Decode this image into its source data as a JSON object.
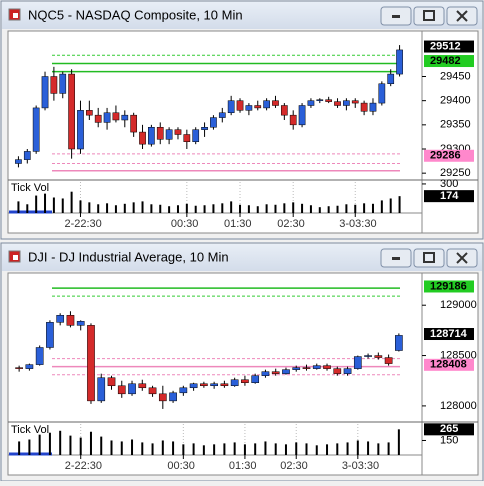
{
  "windows": [
    {
      "title": "NQC5 - NASDAQ Composite, 10 Min",
      "chart_data": {
        "type": "candlestick",
        "categories": [
          null,
          null,
          null,
          null,
          null,
          null,
          null,
          "2-22:30",
          null,
          null,
          null,
          null,
          null,
          null,
          null,
          null,
          null,
          null,
          null,
          "00:30",
          null,
          null,
          null,
          null,
          null,
          "01:30",
          null,
          null,
          null,
          null,
          null,
          "02:30",
          null,
          null,
          null,
          null,
          null,
          null,
          "3-03:30",
          null,
          null,
          null,
          null,
          null
        ],
        "candles": [
          [
            29270,
            29285,
            29262,
            29278
          ],
          [
            29278,
            29300,
            29270,
            29295
          ],
          [
            29295,
            29390,
            29290,
            29385
          ],
          [
            29385,
            29460,
            29380,
            29450
          ],
          [
            29450,
            29470,
            29400,
            29415
          ],
          [
            29415,
            29460,
            29405,
            29455
          ],
          [
            29455,
            29465,
            29280,
            29300
          ],
          [
            29300,
            29400,
            29290,
            29380
          ],
          [
            29380,
            29400,
            29360,
            29370
          ],
          [
            29370,
            29385,
            29345,
            29355
          ],
          [
            29355,
            29385,
            29340,
            29375
          ],
          [
            29375,
            29390,
            29355,
            29360
          ],
          [
            29360,
            29380,
            29345,
            29370
          ],
          [
            29370,
            29375,
            29325,
            29335
          ],
          [
            29335,
            29350,
            29300,
            29310
          ],
          [
            29310,
            29350,
            29305,
            29345
          ],
          [
            29345,
            29355,
            29310,
            29320
          ],
          [
            29320,
            29345,
            29310,
            29340
          ],
          [
            29340,
            29345,
            29320,
            29330
          ],
          [
            29330,
            29340,
            29300,
            29315
          ],
          [
            29315,
            29345,
            29310,
            29340
          ],
          [
            29340,
            29355,
            29325,
            29345
          ],
          [
            29345,
            29370,
            29340,
            29365
          ],
          [
            29365,
            29385,
            29355,
            29375
          ],
          [
            29375,
            29410,
            29370,
            29400
          ],
          [
            29400,
            29405,
            29375,
            29380
          ],
          [
            29380,
            29395,
            29370,
            29390
          ],
          [
            29390,
            29400,
            29380,
            29385
          ],
          [
            29385,
            29405,
            29380,
            29400
          ],
          [
            29400,
            29410,
            29385,
            29390
          ],
          [
            29390,
            29395,
            29360,
            29370
          ],
          [
            29370,
            29380,
            29340,
            29350
          ],
          [
            29350,
            29395,
            29345,
            29390
          ],
          [
            29390,
            29405,
            29385,
            29400
          ],
          [
            29400,
            29405,
            29395,
            29402
          ],
          [
            29402,
            29408,
            29395,
            29398
          ],
          [
            29398,
            29405,
            29385,
            29390
          ],
          [
            29390,
            29405,
            29380,
            29400
          ],
          [
            29400,
            29405,
            29385,
            29395
          ],
          [
            29395,
            29400,
            29370,
            29378
          ],
          [
            29378,
            29405,
            29370,
            29395
          ],
          [
            29395,
            29440,
            29390,
            29435
          ],
          [
            29435,
            29465,
            29430,
            29455
          ],
          [
            29455,
            29515,
            29450,
            29505
          ]
        ],
        "up_color": "#2a5fd8",
        "down_color": "#d42a2a",
        "ylim": [
          29240,
          29540
        ],
        "yticks": [
          29250,
          29300,
          29350,
          29400,
          29450
        ],
        "levels": [
          {
            "value": 29494,
            "color": "#33cc33",
            "dashed": true
          },
          {
            "value": 29477,
            "color": "#22bb22",
            "dashed": false
          },
          {
            "value": 29460,
            "color": "#22bb22",
            "dashed": false
          },
          {
            "value": 29290,
            "color": "#ee88bb",
            "dashed": true
          },
          {
            "value": 29270,
            "color": "#ee88bb",
            "dashed": true
          },
          {
            "value": 29255,
            "color": "#ee88bb",
            "dashed": false
          }
        ],
        "tags": [
          {
            "value": 29512,
            "bg": "#000000",
            "fg": "#ffffff"
          },
          {
            "value": 29482,
            "bg": "#22cc22",
            "fg": "#000000"
          },
          {
            "value": 29286,
            "bg": "#ff88cc",
            "fg": "#000000"
          }
        ],
        "volume": {
          "label": "Tick Vol",
          "ylim": [
            0,
            320
          ],
          "yticks": [
            300
          ],
          "values": [
            120,
            90,
            180,
            200,
            160,
            150,
            220,
            130,
            110,
            90,
            100,
            80,
            95,
            110,
            120,
            90,
            85,
            70,
            80,
            95,
            75,
            80,
            90,
            100,
            120,
            85,
            80,
            70,
            90,
            85,
            100,
            110,
            95,
            80,
            60,
            70,
            75,
            90,
            85,
            100,
            95,
            130,
            150,
            174
          ]
        }
      }
    },
    {
      "title": "DJI - DJ Industrial Average, 10 Min",
      "chart_data": {
        "type": "candlestick",
        "categories": [
          null,
          null,
          null,
          null,
          null,
          null,
          "2-22:30",
          null,
          null,
          null,
          null,
          null,
          null,
          null,
          null,
          null,
          "00:30",
          null,
          null,
          null,
          null,
          null,
          "01:30",
          null,
          null,
          null,
          null,
          "02:30",
          null,
          null,
          null,
          null,
          null,
          "3-03:30",
          null,
          null,
          null,
          null
        ],
        "candles": [
          [
            128380,
            128400,
            128340,
            128370
          ],
          [
            128370,
            128420,
            128350,
            128410
          ],
          [
            128410,
            128600,
            128400,
            128580
          ],
          [
            128580,
            128850,
            128560,
            128830
          ],
          [
            128830,
            128920,
            128800,
            128900
          ],
          [
            128900,
            128940,
            128780,
            128800
          ],
          [
            128800,
            128850,
            128750,
            128840
          ],
          [
            128800,
            128820,
            128020,
            128050
          ],
          [
            128050,
            128320,
            128030,
            128280
          ],
          [
            128280,
            128300,
            128160,
            128200
          ],
          [
            128200,
            128250,
            128080,
            128120
          ],
          [
            128120,
            128250,
            128100,
            128220
          ],
          [
            128220,
            128260,
            128150,
            128180
          ],
          [
            128180,
            128200,
            128090,
            128120
          ],
          [
            128120,
            128200,
            127970,
            128050
          ],
          [
            128050,
            128150,
            128030,
            128130
          ],
          [
            128130,
            128200,
            128100,
            128180
          ],
          [
            128180,
            128230,
            128150,
            128220
          ],
          [
            128220,
            128240,
            128180,
            128200
          ],
          [
            128200,
            128240,
            128170,
            128220
          ],
          [
            128220,
            128250,
            128180,
            128200
          ],
          [
            128200,
            128280,
            128190,
            128260
          ],
          [
            128260,
            128300,
            128200,
            128230
          ],
          [
            128230,
            128320,
            128220,
            128300
          ],
          [
            128300,
            128360,
            128280,
            128340
          ],
          [
            128340,
            128370,
            128300,
            128320
          ],
          [
            128320,
            128380,
            128310,
            128360
          ],
          [
            128360,
            128400,
            128340,
            128380
          ],
          [
            128380,
            128410,
            128350,
            128370
          ],
          [
            128370,
            128420,
            128360,
            128400
          ],
          [
            128400,
            128420,
            128350,
            128370
          ],
          [
            128370,
            128390,
            128300,
            128320
          ],
          [
            128320,
            128390,
            128300,
            128370
          ],
          [
            128370,
            128500,
            128360,
            128490
          ],
          [
            128490,
            128520,
            128470,
            128500
          ],
          [
            128500,
            128530,
            128460,
            128480
          ],
          [
            128480,
            128510,
            128400,
            128420
          ],
          [
            128550,
            128720,
            128540,
            128700
          ]
        ],
        "up_color": "#2a5fd8",
        "down_color": "#d42a2a",
        "ylim": [
          127860,
          129300
        ],
        "yticks": [
          128000,
          128500,
          129000
        ],
        "levels": [
          {
            "value": 129170,
            "color": "#22bb22",
            "dashed": false
          },
          {
            "value": 129090,
            "color": "#33cc33",
            "dashed": true
          },
          {
            "value": 128470,
            "color": "#ee88bb",
            "dashed": true
          },
          {
            "value": 128390,
            "color": "#ee88bb",
            "dashed": false
          },
          {
            "value": 128310,
            "color": "#ee88bb",
            "dashed": true
          }
        ],
        "tags": [
          {
            "value": 129186,
            "bg": "#22cc22",
            "fg": "#000000"
          },
          {
            "value": 128714,
            "bg": "#000000",
            "fg": "#ffffff"
          },
          {
            "value": 128408,
            "bg": "#ff88cc",
            "fg": "#000000"
          }
        ],
        "volume": {
          "label": "Tick Vol",
          "ylim": [
            0,
            320
          ],
          "yticks": [
            150
          ],
          "values": [
            140,
            160,
            210,
            230,
            250,
            200,
            180,
            240,
            190,
            150,
            140,
            160,
            130,
            120,
            150,
            140,
            110,
            120,
            100,
            110,
            120,
            130,
            110,
            120,
            140,
            120,
            110,
            130,
            120,
            100,
            110,
            120,
            130,
            150,
            140,
            120,
            130,
            265
          ]
        }
      }
    }
  ]
}
